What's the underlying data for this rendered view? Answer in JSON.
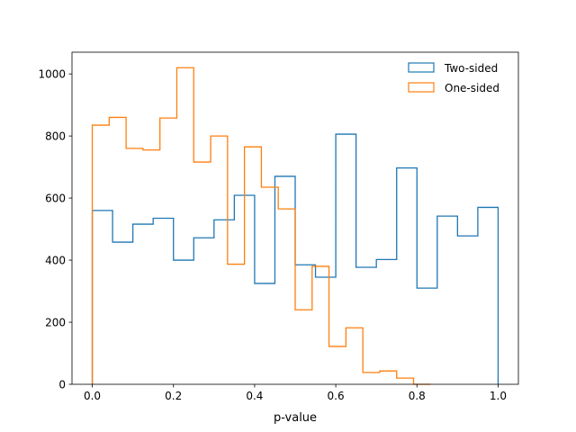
{
  "chart_data": {
    "type": "histogram-step",
    "xlabel": "p-value",
    "ylabel": "",
    "title": "",
    "xlim": [
      -0.05,
      1.05
    ],
    "ylim": [
      0,
      1070
    ],
    "grid": false,
    "legend_position": "top-right",
    "x_ticks": [
      0.0,
      0.2,
      0.4,
      0.6,
      0.8,
      1.0
    ],
    "x_tick_labels": [
      "0.0",
      "0.2",
      "0.4",
      "0.6",
      "0.8",
      "1.0"
    ],
    "y_ticks": [
      0,
      200,
      400,
      600,
      800,
      1000
    ],
    "y_tick_labels": [
      "0",
      "200",
      "400",
      "600",
      "800",
      "1000"
    ],
    "series": [
      {
        "name": "Two-sided",
        "color": "#1f77b4",
        "bin_edges": [
          0.0,
          0.05,
          0.1,
          0.15,
          0.2,
          0.25,
          0.3,
          0.35,
          0.4,
          0.45,
          0.5,
          0.55,
          0.6,
          0.65,
          0.7,
          0.75,
          0.8,
          0.85,
          0.9,
          0.95,
          1.0
        ],
        "counts": [
          560,
          458,
          516,
          535,
          400,
          472,
          530,
          609,
          325,
          670,
          385,
          345,
          806,
          377,
          402,
          697,
          310,
          542,
          478,
          570
        ]
      },
      {
        "name": "One-sided",
        "color": "#ff7f0e",
        "bin_edges": [
          0.0,
          0.0417,
          0.0833,
          0.125,
          0.1667,
          0.2083,
          0.25,
          0.2917,
          0.3333,
          0.375,
          0.4167,
          0.4583,
          0.5,
          0.5417,
          0.5833,
          0.625,
          0.6667,
          0.7083,
          0.75,
          0.7917,
          0.8333
        ],
        "counts": [
          835,
          860,
          760,
          755,
          858,
          1020,
          716,
          800,
          387,
          765,
          635,
          565,
          240,
          380,
          122,
          182,
          38,
          43,
          20,
          0
        ]
      }
    ]
  }
}
